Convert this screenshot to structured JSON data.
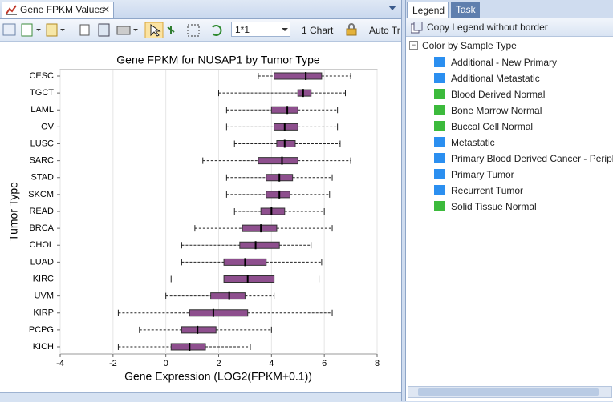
{
  "ui": {
    "doc_tab": "Gene FPKM Values",
    "toolbar": {
      "layout": "1*1",
      "chart_count": "1 Chart",
      "auto": "Auto Tr"
    },
    "legend_tab": "Legend",
    "task_tab": "Task",
    "copy_legend": "Copy Legend  without border",
    "legend": {
      "group": "Color by Sample Type",
      "items": [
        {
          "label": "Additional - New Primary",
          "color": "#2b8ff0"
        },
        {
          "label": "Additional Metastatic",
          "color": "#2b8ff0"
        },
        {
          "label": "Blood Derived Normal",
          "color": "#3cba3c"
        },
        {
          "label": "Bone Marrow Normal",
          "color": "#3cba3c"
        },
        {
          "label": "Buccal Cell Normal",
          "color": "#3cba3c"
        },
        {
          "label": "Metastatic",
          "color": "#2b8ff0"
        },
        {
          "label": "Primary Blood Derived Cancer - Periphera",
          "color": "#2b8ff0"
        },
        {
          "label": "Primary Tumor",
          "color": "#2b8ff0"
        },
        {
          "label": "Recurrent Tumor",
          "color": "#2b8ff0"
        },
        {
          "label": "Solid Tissue Normal",
          "color": "#3cba3c"
        }
      ]
    }
  },
  "chart_data": {
    "type": "box",
    "title": "Gene FPKM for NUSAP1 by Tumor Type",
    "x_label": "Gene Expression (LOG2(FPKM+0.1))",
    "y_label": "Tumor Type",
    "categories": [
      "CESC",
      "TGCT",
      "LAML",
      "OV",
      "LUSC",
      "SARC",
      "STAD",
      "SKCM",
      "READ",
      "BRCA",
      "CHOL",
      "LUAD",
      "KIRC",
      "UVM",
      "KIRP",
      "PCPG",
      "KICH"
    ],
    "min": [
      3.5,
      2.0,
      2.3,
      2.3,
      2.6,
      1.4,
      2.3,
      2.3,
      2.6,
      1.1,
      0.6,
      0.6,
      0.2,
      0.0,
      -1.8,
      -1.0,
      -1.8
    ],
    "q1": [
      4.1,
      5.0,
      4.0,
      4.1,
      4.2,
      3.5,
      3.8,
      3.8,
      3.6,
      2.9,
      2.8,
      2.2,
      2.2,
      1.7,
      0.9,
      0.6,
      0.2
    ],
    "median": [
      5.3,
      5.2,
      4.6,
      4.5,
      4.5,
      4.4,
      4.3,
      4.3,
      4.0,
      3.6,
      3.4,
      3.0,
      3.1,
      2.4,
      1.8,
      1.2,
      0.9
    ],
    "q3": [
      5.9,
      5.5,
      5.0,
      5.0,
      4.9,
      5.0,
      4.8,
      4.7,
      4.5,
      4.2,
      4.3,
      3.8,
      4.1,
      3.0,
      3.1,
      1.9,
      1.5
    ],
    "max": [
      7.0,
      6.8,
      6.5,
      6.5,
      6.6,
      7.0,
      6.3,
      6.2,
      6.0,
      6.3,
      5.5,
      5.9,
      5.8,
      4.1,
      6.3,
      4.0,
      3.2
    ],
    "color": "#8e4f8e",
    "xlim": [
      -4,
      8
    ],
    "xticks": [
      -4,
      -2,
      0,
      2,
      4,
      6,
      8
    ],
    "grid": true
  }
}
